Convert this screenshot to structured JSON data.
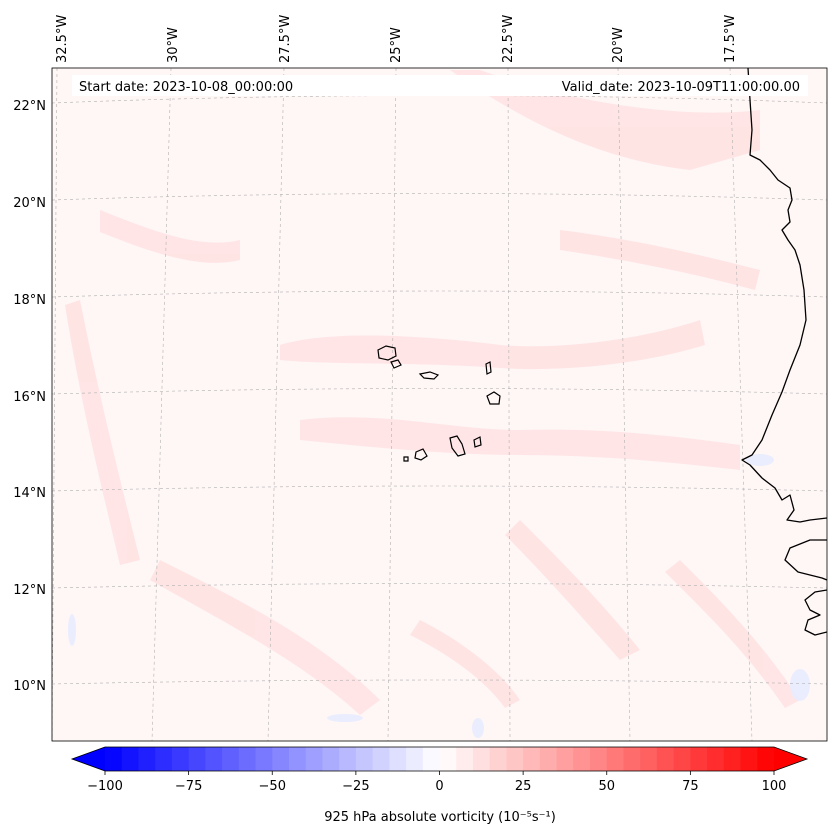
{
  "map": {
    "start_label": "Start date: 2023-10-08_00:00:00",
    "valid_label": "Valid_date: 2023-10-09T11:00:00.00",
    "lon_labels": [
      "32.5°W",
      "30°W",
      "27.5°W",
      "25°W",
      "22.5°W",
      "20°W",
      "17.5°W"
    ],
    "lat_labels": [
      "22°N",
      "20°N",
      "18°N",
      "16°N",
      "14°N",
      "12°N",
      "10°N"
    ],
    "gridlines": true,
    "coastline_color": "#000000",
    "features": [
      "Cabo Verde islands",
      "West African coastline"
    ]
  },
  "colorbar": {
    "label": "925 hPa absolute vorticity (10⁻⁵s⁻¹)",
    "ticks": [
      "−100",
      "−75",
      "−50",
      "−25",
      "0",
      "25",
      "50",
      "75",
      "100"
    ],
    "tick_values": [
      -100,
      -75,
      -50,
      -25,
      0,
      25,
      50,
      75,
      100
    ],
    "range": [
      -100,
      100
    ],
    "step": 5,
    "colormap": "bwr",
    "extend": "both",
    "low_color": "#0000ff",
    "mid_color": "#ffffff",
    "high_color": "#ff0000"
  }
}
